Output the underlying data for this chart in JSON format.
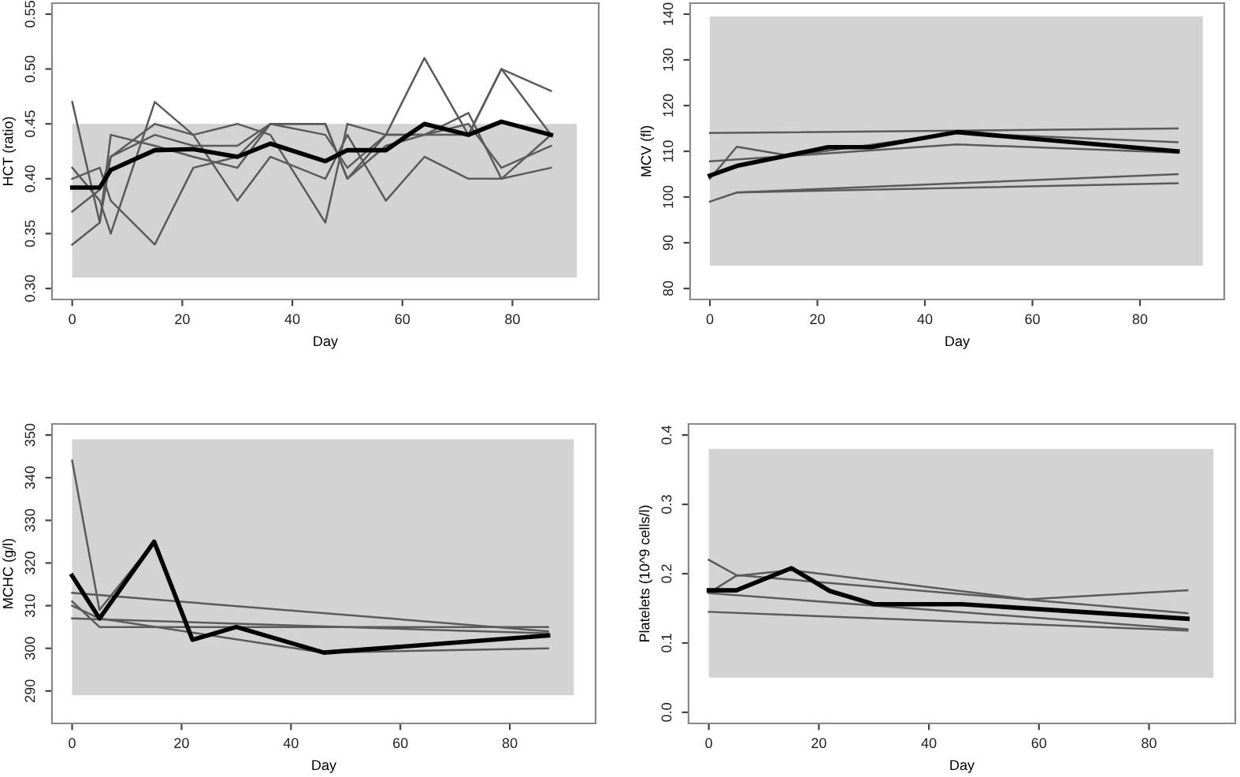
{
  "chart_data": [
    {
      "type": "line",
      "xlabel": "Day",
      "ylabel": "HCT (ratio)",
      "xlim": [
        -3.68,
        95.68
      ],
      "ylim": [
        0.29,
        0.56
      ],
      "xticks": [
        0,
        20,
        40,
        60,
        80
      ],
      "yticks": [
        {
          "value": 0.3,
          "label": "0.30"
        },
        {
          "value": 0.35,
          "label": "0.35"
        },
        {
          "value": 0.4,
          "label": "0.40"
        },
        {
          "value": 0.45,
          "label": "0.45"
        },
        {
          "value": 0.5,
          "label": "0.50"
        },
        {
          "value": 0.55,
          "label": "0.55"
        }
      ],
      "grid": false,
      "bands": [
        {
          "axis": "y",
          "from": 0.31,
          "to": 0.45,
          "color": "#d3d3d3"
        }
      ],
      "series": [
        {
          "color": "#000000",
          "x": [
            0,
            5,
            7,
            15,
            22,
            30,
            36,
            46,
            50,
            57,
            64,
            72,
            78,
            87
          ],
          "values": [
            0.392,
            0.392,
            0.408,
            0.426,
            0.427,
            0.42,
            0.432,
            0.416,
            0.426,
            0.426,
            0.45,
            0.44,
            0.452,
            0.44
          ]
        },
        {
          "color": "#5a5a5a",
          "x": [
            0,
            5,
            7,
            15,
            22,
            30,
            36,
            46,
            50,
            57,
            64,
            72,
            78,
            87
          ],
          "values": [
            0.47,
            0.36,
            0.44,
            0.43,
            0.42,
            0.41,
            0.45,
            0.45,
            0.4,
            0.44,
            0.44,
            0.46,
            0.4,
            0.44
          ]
        },
        {
          "color": "#5a5a5a",
          "x": [
            0,
            5,
            7,
            15,
            22,
            30,
            36,
            46,
            50,
            57,
            64,
            72,
            78,
            87
          ],
          "values": [
            0.41,
            0.38,
            0.35,
            0.47,
            0.44,
            0.38,
            0.42,
            0.4,
            0.44,
            0.38,
            0.42,
            0.4,
            0.4,
            0.41
          ]
        },
        {
          "color": "#5a5a5a",
          "x": [
            0,
            5,
            7,
            15,
            22,
            30,
            36,
            46,
            50,
            57,
            64,
            72,
            78,
            87
          ],
          "values": [
            0.34,
            0.36,
            0.42,
            0.45,
            0.44,
            0.45,
            0.44,
            0.36,
            0.45,
            0.44,
            0.51,
            0.44,
            0.5,
            0.48
          ]
        },
        {
          "color": "#5a5a5a",
          "x": [
            0,
            5,
            7,
            15,
            22,
            30,
            36,
            46,
            50,
            57,
            64,
            72,
            78,
            87
          ],
          "values": [
            0.4,
            0.41,
            0.38,
            0.34,
            0.41,
            0.42,
            0.45,
            0.45,
            0.4,
            0.43,
            0.44,
            0.45,
            0.41,
            0.43
          ]
        },
        {
          "color": "#5a5a5a",
          "x": [
            0,
            5,
            7,
            15,
            22,
            30,
            36,
            46,
            50,
            57,
            64,
            72,
            78,
            87
          ],
          "values": [
            0.37,
            0.39,
            0.42,
            0.44,
            0.43,
            0.43,
            0.45,
            0.44,
            0.41,
            0.44,
            0.44,
            0.44,
            0.5,
            0.44
          ]
        }
      ]
    },
    {
      "type": "line",
      "xlabel": "Day",
      "ylabel": "MCV (fl)",
      "xlim": [
        -3.68,
        95.68
      ],
      "ylim": [
        77.6,
        142.4
      ],
      "xticks": [
        0,
        20,
        40,
        60,
        80
      ],
      "yticks": [
        80,
        90,
        100,
        110,
        120,
        130,
        140
      ],
      "grid": false,
      "bands": [
        {
          "axis": "y",
          "from": 85,
          "to": 139.5,
          "color": "#d3d3d3"
        }
      ],
      "series": [
        {
          "color": "#000000",
          "x": [
            0,
            5,
            22,
            30,
            46,
            87
          ],
          "values": [
            104.7,
            106.8,
            110.9,
            110.9,
            114.2,
            110.0
          ]
        },
        {
          "color": "#5a5a5a",
          "x": [
            0,
            87
          ],
          "values": [
            114,
            115
          ]
        },
        {
          "color": "#5a5a5a",
          "x": [
            0,
            5,
            87
          ],
          "values": [
            99,
            101,
            103
          ]
        },
        {
          "color": "#5a5a5a",
          "x": [
            0,
            5,
            15,
            46,
            87
          ],
          "values": [
            104,
            111,
            109,
            114,
            112
          ]
        },
        {
          "color": "#5a5a5a",
          "x": [
            0,
            46,
            87
          ],
          "values": [
            107.8,
            111.5,
            109.7
          ]
        },
        {
          "color": "#5a5a5a",
          "x": [
            5,
            87
          ],
          "values": [
            101,
            105
          ]
        }
      ]
    },
    {
      "type": "line",
      "xlabel": "Day",
      "ylabel": "MCHC (g/l)",
      "xlim": [
        -3.68,
        95.68
      ],
      "ylim": [
        282.4,
        352.6
      ],
      "xticks": [
        0,
        20,
        40,
        60,
        80
      ],
      "yticks": [
        290,
        300,
        310,
        320,
        330,
        340,
        350
      ],
      "grid": false,
      "bands": [
        {
          "axis": "y",
          "from": 289,
          "to": 349,
          "color": "#d3d3d3"
        }
      ],
      "series": [
        {
          "color": "#000000",
          "x": [
            0,
            5,
            15,
            22,
            30,
            46,
            87
          ],
          "values": [
            317,
            307,
            325,
            302,
            305,
            299,
            303
          ]
        },
        {
          "color": "#5a5a5a",
          "x": [
            0,
            5,
            15
          ],
          "values": [
            344,
            309,
            325
          ]
        },
        {
          "color": "#5a5a5a",
          "x": [
            0,
            87
          ],
          "values": [
            313,
            304
          ]
        },
        {
          "color": "#5a5a5a",
          "x": [
            0,
            5,
            87
          ],
          "values": [
            311,
            305,
            305
          ]
        },
        {
          "color": "#5a5a5a",
          "x": [
            0,
            87
          ],
          "values": [
            307,
            303.5
          ]
        },
        {
          "color": "#5a5a5a",
          "x": [
            0,
            5,
            46,
            87
          ],
          "values": [
            310,
            307,
            299,
            300
          ]
        }
      ]
    },
    {
      "type": "line",
      "xlabel": "Day",
      "ylabel": "Platelets (10^9 cells/l)",
      "xlim": [
        -3.68,
        95.68
      ],
      "ylim": [
        -0.016,
        0.416
      ],
      "xticks": [
        0,
        20,
        40,
        60,
        80
      ],
      "yticks": [
        {
          "value": 0.0,
          "label": "0.0"
        },
        {
          "value": 0.1,
          "label": "0.1"
        },
        {
          "value": 0.2,
          "label": "0.2"
        },
        {
          "value": 0.3,
          "label": "0.3"
        },
        {
          "value": 0.4,
          "label": "0.4"
        }
      ],
      "grid": false,
      "bands": [
        {
          "axis": "y",
          "from": 0.05,
          "to": 0.38,
          "color": "#d3d3d3"
        }
      ],
      "series": [
        {
          "color": "#000000",
          "x": [
            0,
            5,
            15,
            22,
            30,
            46,
            87
          ],
          "values": [
            0.176,
            0.176,
            0.208,
            0.175,
            0.156,
            0.156,
            0.135
          ]
        },
        {
          "color": "#5a5a5a",
          "x": [
            0,
            5,
            87
          ],
          "values": [
            0.22,
            0.198,
            0.143
          ]
        },
        {
          "color": "#5a5a5a",
          "x": [
            0,
            5,
            15,
            58,
            87
          ],
          "values": [
            0.172,
            0.197,
            0.205,
            0.163,
            0.176
          ]
        },
        {
          "color": "#5a5a5a",
          "x": [
            0,
            87
          ],
          "values": [
            0.172,
            0.12
          ]
        },
        {
          "color": "#5a5a5a",
          "x": [
            0,
            87
          ],
          "values": [
            0.145,
            0.118
          ]
        }
      ]
    }
  ]
}
